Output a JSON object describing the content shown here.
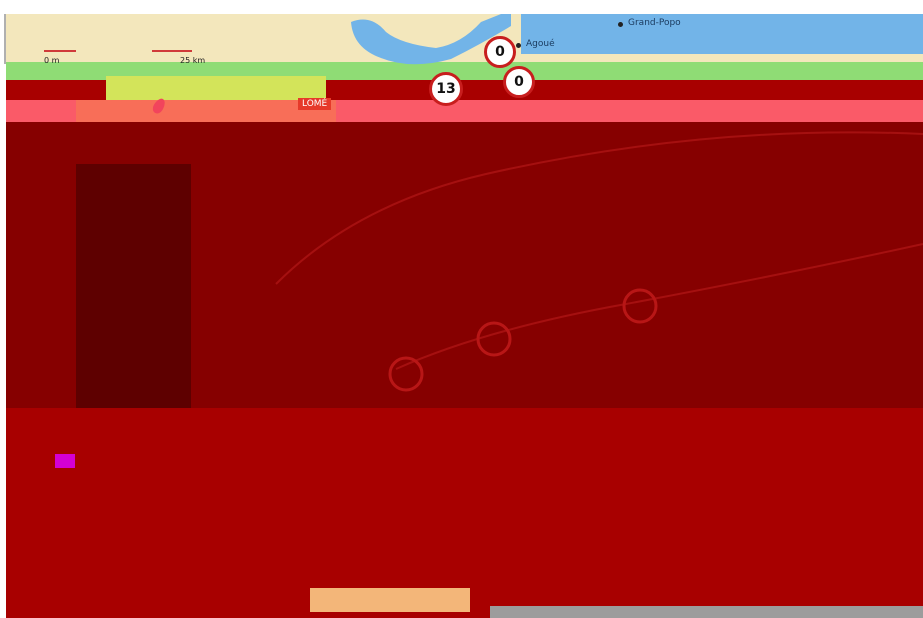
{
  "map": {
    "scale": {
      "start_label": "0 m",
      "end_label": "25 km"
    },
    "places": {
      "lome": "LOMÉ",
      "agoue": "Agoué",
      "grand_popo": "Grand-Popo"
    },
    "badges": {
      "route_a": "0",
      "route_b": "13",
      "route_c": "0"
    }
  }
}
